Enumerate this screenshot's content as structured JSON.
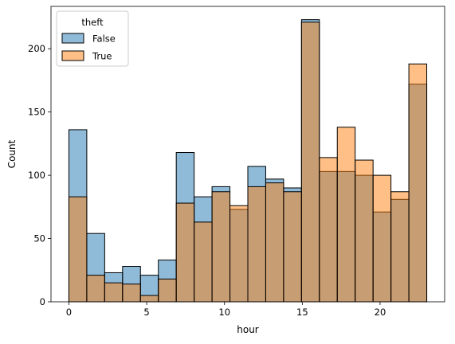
{
  "chart_data": {
    "type": "bar",
    "subtype": "overlapping-histogram",
    "title": "",
    "xlabel": "hour",
    "ylabel": "Count",
    "xlim": [
      -1.15,
      24.15
    ],
    "ylim": [
      0,
      233.5
    ],
    "xticks": [
      0,
      5,
      10,
      15,
      20
    ],
    "yticks": [
      0,
      50,
      100,
      150,
      200
    ],
    "bin_edges": [
      0,
      1.15,
      2.3,
      3.45,
      4.6,
      5.75,
      6.9,
      8.05,
      9.2,
      10.35,
      11.5,
      12.65,
      13.8,
      14.95,
      16.1,
      17.25,
      18.4,
      19.55,
      20.7,
      21.85,
      23.0
    ],
    "series": [
      {
        "name": "False",
        "color": "#1f77b4",
        "values": [
          136,
          54,
          23,
          28,
          21,
          33,
          118,
          83,
          91,
          73,
          107,
          97,
          90,
          223,
          103,
          103,
          100,
          71,
          81,
          172
        ]
      },
      {
        "name": "True",
        "color": "#ff7f0e",
        "values": [
          83,
          21,
          15,
          14,
          5,
          18,
          78,
          63,
          87,
          76,
          91,
          94,
          87,
          221,
          114,
          138,
          112,
          100,
          87,
          188
        ]
      }
    ],
    "legend": {
      "title": "theft",
      "placement": "top-left"
    },
    "grid": false
  }
}
